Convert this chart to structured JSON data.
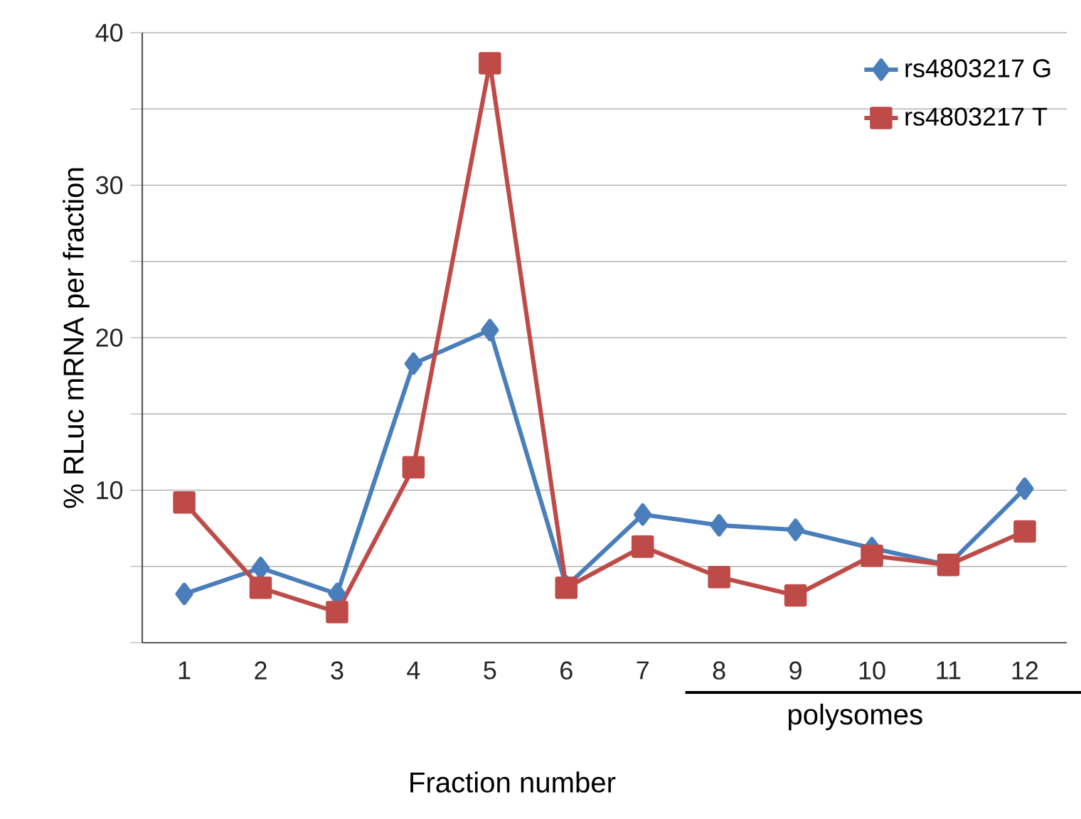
{
  "chart_data": {
    "type": "line",
    "xlabel": "Fraction number",
    "ylabel": "% RLuc mRNA per fraction",
    "categories": [
      "1",
      "2",
      "3",
      "4",
      "5",
      "6",
      "7",
      "8",
      "9",
      "10",
      "11",
      "12"
    ],
    "series": [
      {
        "name": "rs4803217 G",
        "color": "#4a7ebb",
        "marker": "diamond",
        "values": [
          3.2,
          4.9,
          3.2,
          18.3,
          20.5,
          3.7,
          8.4,
          7.7,
          7.4,
          6.2,
          5.1,
          10.1
        ]
      },
      {
        "name": "rs4803217 T",
        "color": "#be4b48",
        "marker": "square",
        "values": [
          9.2,
          3.6,
          2.0,
          11.5,
          38.0,
          3.6,
          6.3,
          4.3,
          3.1,
          5.7,
          5.1,
          7.3
        ]
      }
    ],
    "ylim": [
      0,
      40
    ],
    "yticks": [
      {
        "value": 0,
        "label": null
      },
      {
        "value": 5,
        "label": null
      },
      10,
      {
        "value": 15,
        "label": null
      },
      20,
      {
        "value": 25,
        "label": null
      },
      30,
      {
        "value": 35,
        "label": null
      },
      40
    ],
    "grid": "y",
    "legend": "top right",
    "line_style": "solid",
    "annotations": [
      "polysomes"
    ]
  }
}
